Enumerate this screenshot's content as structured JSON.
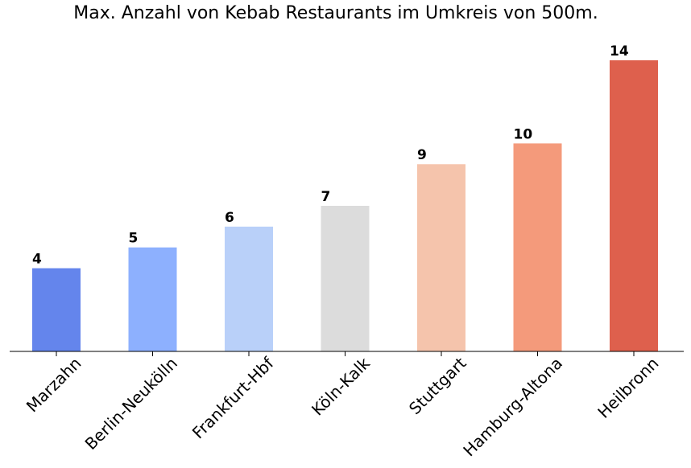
{
  "chart_data": {
    "type": "bar",
    "title": "Max. Anzahl von Kebab Restaurants im Umkreis von 500m.",
    "xlabel": "",
    "ylabel": "",
    "categories": [
      "Marzahn",
      "Berlin-Neukölln",
      "Frankfurt-Hbf",
      "Köln-Kalk",
      "Stuttgart",
      "Hamburg-Altona",
      "Heilbronn"
    ],
    "values": [
      4,
      5,
      6,
      7,
      9,
      10,
      14
    ],
    "colors": [
      "#6485ec",
      "#8db0fe",
      "#b9d0f9",
      "#dcdcdc",
      "#f5c4ac",
      "#f49a7b",
      "#de604d"
    ],
    "ylim": [
      0,
      14.5
    ],
    "grid": false,
    "legend": "none",
    "data_labels": true
  }
}
